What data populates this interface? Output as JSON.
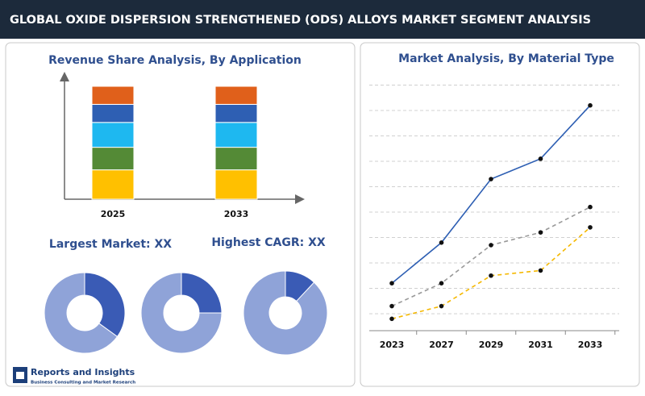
{
  "header": {
    "title": "GLOBAL OXIDE DISPERSION STRENGTHENED (ODS) ALLOYS MARKET SEGMENT ANALYSIS"
  },
  "labels": [
    "Largest Market: XX",
    "Highest CAGR: XX"
  ],
  "logo": {
    "name": "Reports and Insights",
    "tagline": "Business Consulting and Market Research"
  },
  "chart_data": [
    {
      "type": "bar",
      "stacked": true,
      "title": "Revenue Share Analysis, By Application",
      "categories": [
        "2025",
        "2033"
      ],
      "series": [
        {
          "color": "#ffc000",
          "values": [
            26,
            26
          ]
        },
        {
          "color": "#548a36",
          "values": [
            20,
            20
          ]
        },
        {
          "color": "#1eb8f0",
          "values": [
            22,
            22
          ]
        },
        {
          "color": "#2e5fb3",
          "values": [
            16,
            16
          ]
        },
        {
          "color": "#e0601b",
          "values": [
            16,
            16
          ]
        }
      ]
    },
    {
      "type": "pie",
      "donut": true,
      "values": [
        35,
        65
      ],
      "colors": [
        "#3a5bb5",
        "#8fa3d8"
      ]
    },
    {
      "type": "pie",
      "donut": true,
      "values": [
        25,
        75
      ],
      "colors": [
        "#3a5bb5",
        "#8fa3d8"
      ]
    },
    {
      "type": "pie",
      "donut": true,
      "values": [
        12,
        88
      ],
      "colors": [
        "#3a5bb5",
        "#8fa3d8"
      ]
    },
    {
      "type": "line",
      "title": "Market Analysis, By Material Type",
      "categories": [
        "2023",
        "2027",
        "2029",
        "2031",
        "2033"
      ],
      "ylim": [
        0,
        10
      ],
      "yticks": [
        1,
        2,
        3,
        4,
        5,
        6,
        7,
        8,
        9,
        10
      ],
      "grid": true,
      "series": [
        {
          "color": "#2e5fb3",
          "dashed": false,
          "values": [
            2.2,
            3.8,
            6.3,
            7.1,
            9.2
          ]
        },
        {
          "color": "#999999",
          "dashed": true,
          "values": [
            1.3,
            2.2,
            3.7,
            4.2,
            5.2
          ]
        },
        {
          "color": "#f5b800",
          "dashed": true,
          "values": [
            0.8,
            1.3,
            2.5,
            2.7,
            4.4
          ]
        }
      ]
    }
  ]
}
